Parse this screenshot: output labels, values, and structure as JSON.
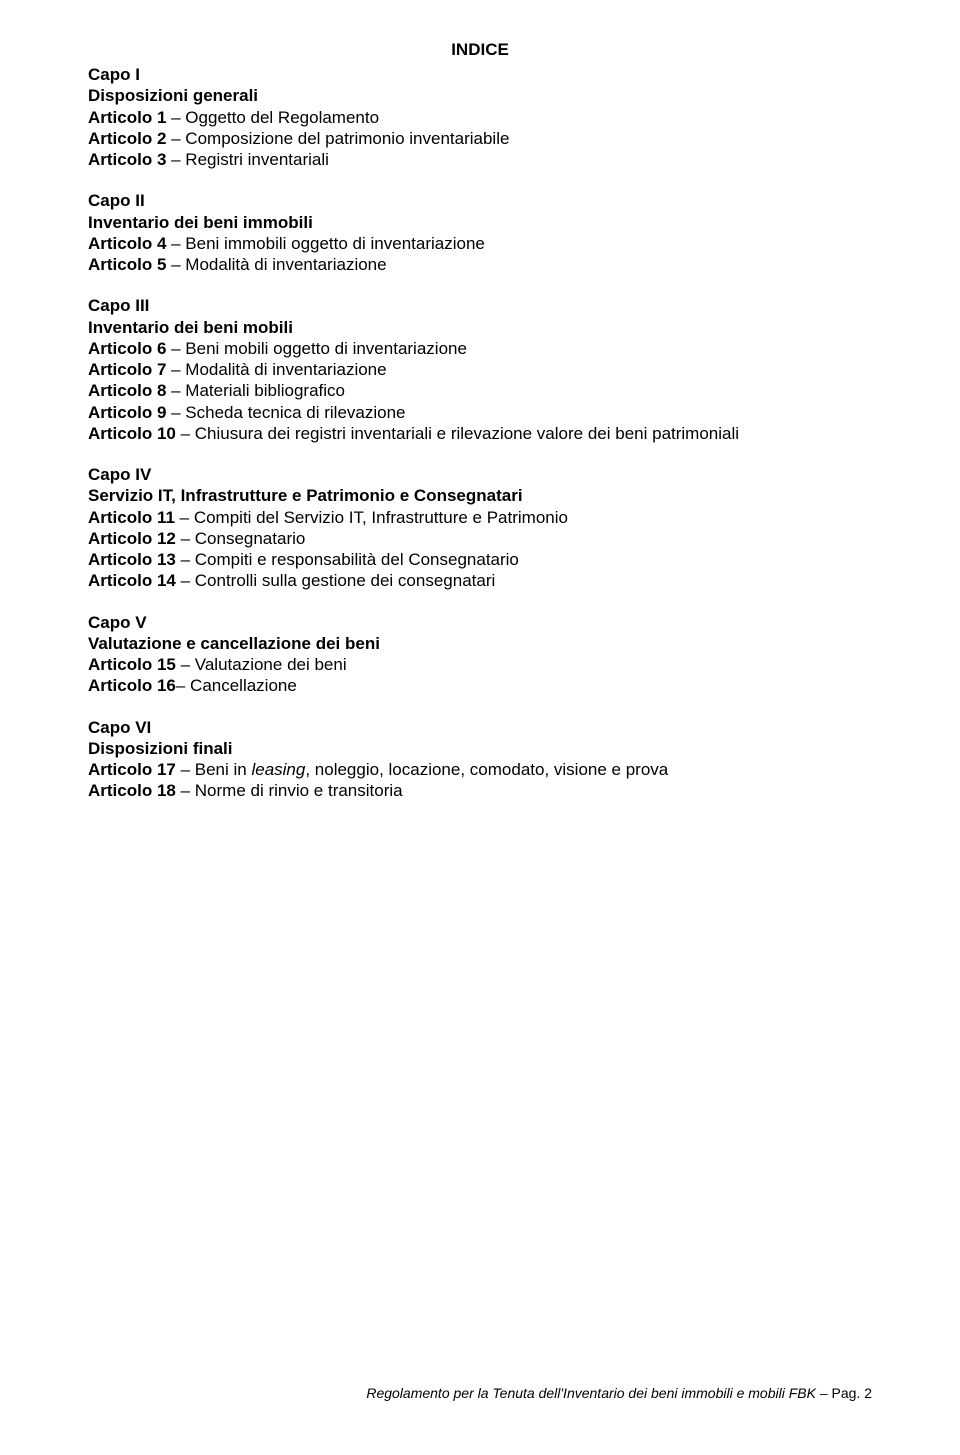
{
  "colors": {
    "background": "#ffffff",
    "text": "#000000"
  },
  "typography": {
    "font_family": "Arial, Helvetica, sans-serif",
    "body_fontsize": 17,
    "footer_fontsize": 14,
    "line_height": 1.25
  },
  "title": "INDICE",
  "sections": [
    {
      "head1": "Capo I",
      "head2": "Disposizioni generali",
      "items": [
        {
          "label": "Articolo 1",
          "text": " – Oggetto del Regolamento"
        },
        {
          "label": "Articolo 2",
          "text": " – Composizione del patrimonio inventariabile"
        },
        {
          "label": "Articolo 3",
          "text": " – Registri inventariali"
        }
      ]
    },
    {
      "head1": "Capo II",
      "head2": "Inventario dei beni immobili",
      "items": [
        {
          "label": "Articolo 4",
          "text": " – Beni immobili oggetto di inventariazione"
        },
        {
          "label": "Articolo 5",
          "text": " – Modalità di inventariazione"
        }
      ]
    },
    {
      "head1": "Capo III",
      "head2": "Inventario dei beni mobili",
      "items": [
        {
          "label": "Articolo 6",
          "text": " – Beni mobili oggetto di inventariazione"
        },
        {
          "label": "Articolo 7",
          "text": " – Modalità di inventariazione"
        },
        {
          "label": "Articolo 8",
          "text": " – Materiali bibliografico"
        },
        {
          "label": "Articolo 9",
          "text": " – Scheda tecnica di rilevazione"
        },
        {
          "label": "Articolo 10",
          "text": " – Chiusura dei registri inventariali e rilevazione valore dei beni patrimoniali"
        }
      ]
    },
    {
      "head1": "Capo IV",
      "head2": "Servizio IT, Infrastrutture e Patrimonio e Consegnatari",
      "items": [
        {
          "label": "Articolo 11",
          "text": " – Compiti del Servizio IT, Infrastrutture e Patrimonio"
        },
        {
          "label": "Articolo 12",
          "text": " – Consegnatario"
        },
        {
          "label": "Articolo 13",
          "text": " – Compiti e responsabilità del Consegnatario"
        },
        {
          "label": "Articolo 14",
          "text": " – Controlli sulla gestione dei consegnatari"
        }
      ]
    },
    {
      "head1": "Capo V",
      "head2": "Valutazione e cancellazione dei beni",
      "items": [
        {
          "label": "Articolo 15",
          "text": " – Valutazione dei beni"
        },
        {
          "label": "Articolo 16",
          "text": "–   Cancellazione"
        }
      ]
    },
    {
      "head1": "Capo VI",
      "head2": "Disposizioni finali",
      "items": [
        {
          "label": "Articolo 17",
          "text_pre": " – Beni in ",
          "text_italic": "leasing",
          "text_post": ", noleggio, locazione, comodato, visione e prova"
        },
        {
          "label": "Articolo 18",
          "text": " – Norme di rinvio e transitoria"
        }
      ]
    }
  ],
  "footer": {
    "text": "Regolamento per la Tenuta dell'Inventario dei beni immobili e mobili FBK – ",
    "page_label": "Pag. 2"
  }
}
